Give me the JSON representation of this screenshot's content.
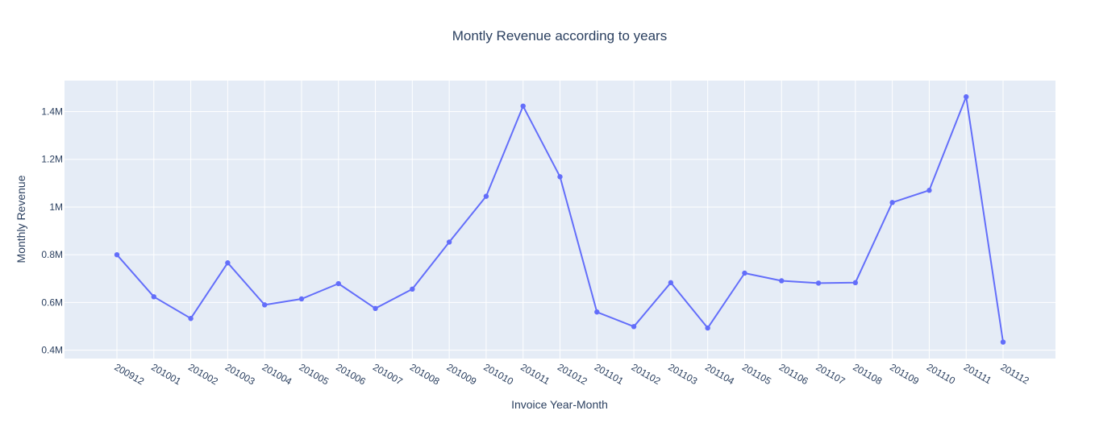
{
  "chart_data": {
    "type": "line",
    "title": "Montly Revenue according to years",
    "xlabel": "Invoice Year-Month",
    "ylabel": "Monthly Revenue",
    "categories": [
      "200912",
      "201001",
      "201002",
      "201003",
      "201004",
      "201005",
      "201006",
      "201007",
      "201008",
      "201009",
      "201010",
      "201011",
      "201012",
      "201101",
      "201102",
      "201103",
      "201104",
      "201105",
      "201106",
      "201107",
      "201108",
      "201109",
      "201110",
      "201111",
      "201112"
    ],
    "series": [
      {
        "values": [
          800000,
          624000,
          533000,
          766000,
          590000,
          615000,
          679000,
          575000,
          656000,
          853000,
          1045000,
          1423000,
          1127000,
          560000,
          499000,
          683000,
          493000,
          723000,
          691000,
          681000,
          683000,
          1019000,
          1070000,
          1462000,
          434000
        ],
        "color": "#636efa",
        "mode": "lines+markers"
      }
    ],
    "ylim": [
      365000,
      1530000
    ],
    "yticks": [
      400000,
      600000,
      800000,
      1000000,
      1200000,
      1400000
    ],
    "ytick_labels": [
      "0.4M",
      "0.6M",
      "0.8M",
      "1M",
      "1.2M",
      "1.4M"
    ],
    "grid": true,
    "plot_bgcolor": "#e5ecf6",
    "grid_color": "#ffffff",
    "text_color": "#2a3f5f"
  }
}
